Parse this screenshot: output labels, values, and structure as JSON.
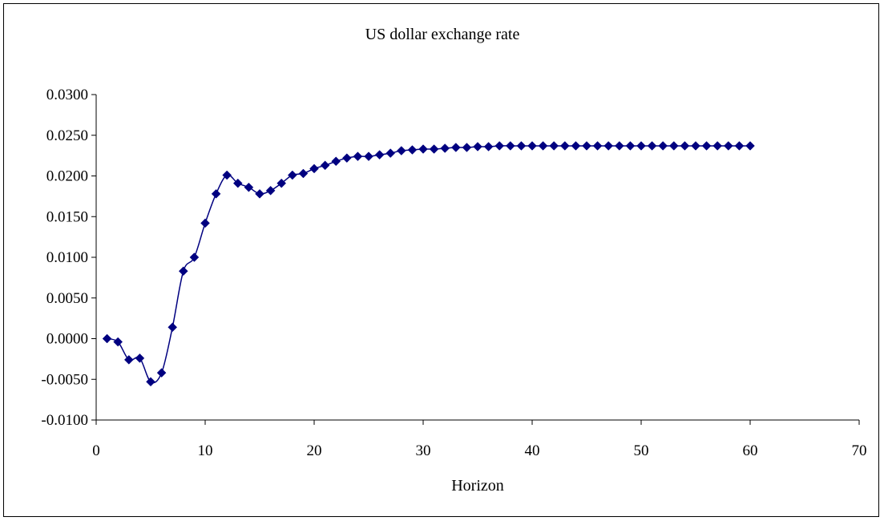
{
  "chart_data": {
    "type": "line",
    "title": "US dollar exchange rate",
    "xlabel": "Horizon",
    "ylabel": "",
    "xlim": [
      0,
      70
    ],
    "ylim": [
      -0.01,
      0.03
    ],
    "xticks": [
      0,
      10,
      20,
      30,
      40,
      50,
      60,
      70
    ],
    "yticks": [
      -0.01,
      -0.005,
      0.0,
      0.005,
      0.01,
      0.015,
      0.02,
      0.025,
      0.03
    ],
    "ytick_labels": [
      "-0.0100",
      "-0.0050",
      "0.0000",
      "0.0050",
      "0.0100",
      "0.0150",
      "0.0200",
      "0.0250",
      "0.0300"
    ],
    "xtick_labels": [
      "0",
      "10",
      "20",
      "30",
      "40",
      "50",
      "60",
      "70"
    ],
    "grid": false,
    "legend": "none",
    "marker": "diamond",
    "color": "#000080",
    "series": [
      {
        "x": [
          1,
          2,
          3,
          4,
          5,
          6,
          7,
          8,
          9,
          10,
          11,
          12,
          13,
          14,
          15,
          16,
          17,
          18,
          19,
          20,
          21,
          22,
          23,
          24,
          25,
          26,
          27,
          28,
          29,
          30,
          31,
          32,
          33,
          34,
          35,
          36,
          37,
          38,
          39,
          40,
          41,
          42,
          43,
          44,
          45,
          46,
          47,
          48,
          49,
          50,
          51,
          52,
          53,
          54,
          55,
          56,
          57,
          58,
          59,
          60
        ],
        "y": [
          0.0,
          -0.0004,
          -0.0026,
          -0.0024,
          -0.0053,
          -0.0042,
          0.0014,
          0.0083,
          0.01,
          0.0142,
          0.0178,
          0.0201,
          0.0191,
          0.0186,
          0.0178,
          0.0182,
          0.0191,
          0.0201,
          0.0203,
          0.0209,
          0.0213,
          0.0218,
          0.0222,
          0.0224,
          0.0224,
          0.0226,
          0.0228,
          0.0231,
          0.0232,
          0.0233,
          0.0233,
          0.0234,
          0.0235,
          0.0235,
          0.0236,
          0.0236,
          0.0237,
          0.0237,
          0.0237,
          0.0237,
          0.0237,
          0.0237,
          0.0237,
          0.0237,
          0.0237,
          0.0237,
          0.0237,
          0.0237,
          0.0237,
          0.0237,
          0.0237,
          0.0237,
          0.0237,
          0.0237,
          0.0237,
          0.0237,
          0.0237,
          0.0237,
          0.0237,
          0.0237
        ]
      }
    ]
  }
}
